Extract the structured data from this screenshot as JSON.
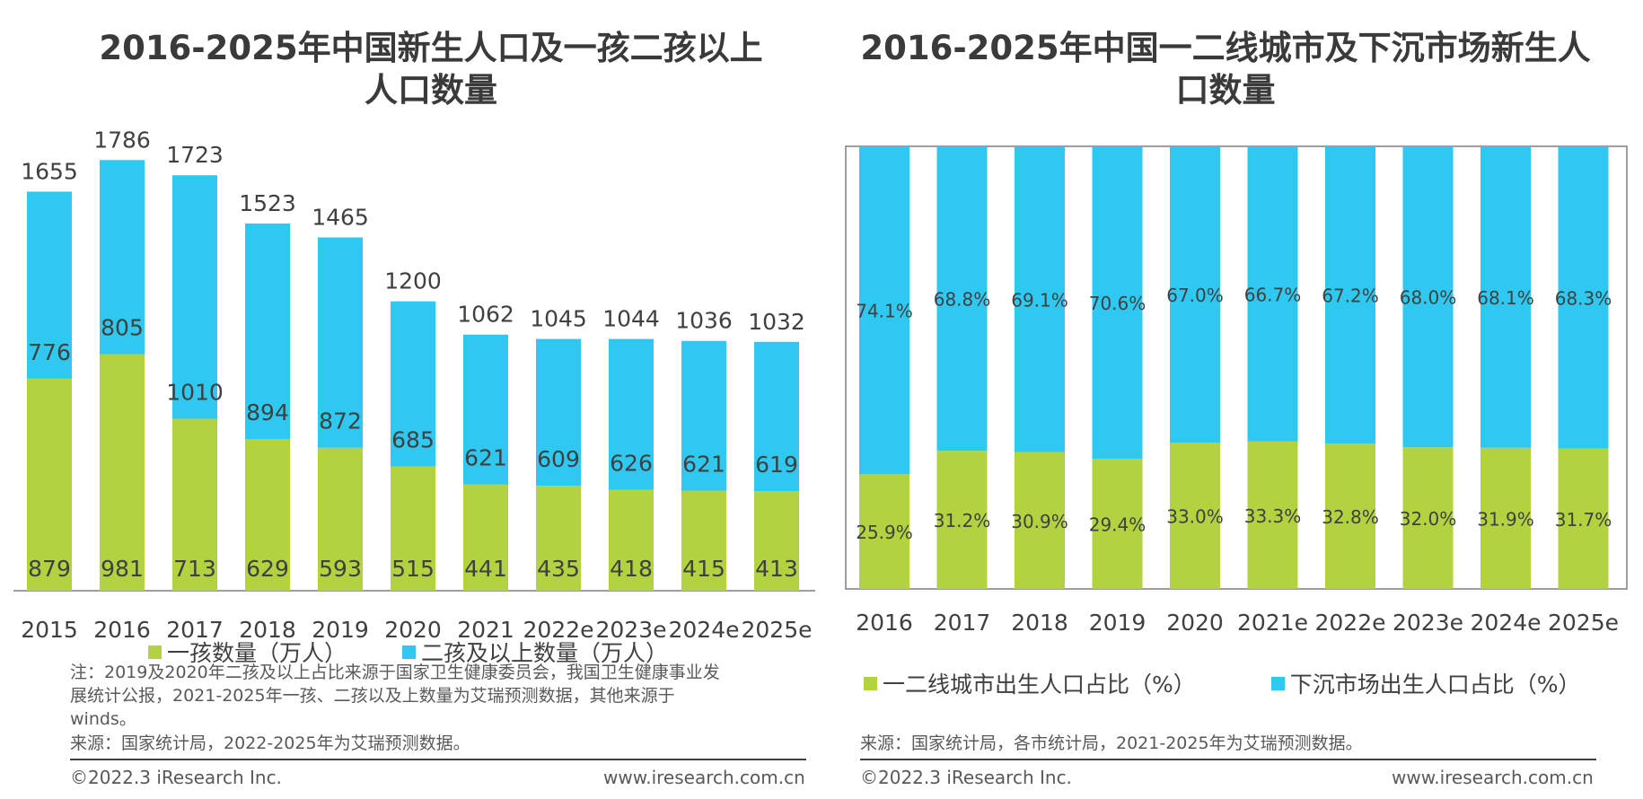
{
  "left": {
    "title_line1": "2016-2025年中国新生人口及一孩二孩以上",
    "title_line2": "人口数量",
    "legend": {
      "first": "一孩数量（万人）",
      "second": "二孩及以上数量（万人）"
    },
    "note": "注：2019及2020年二孩及以上占比来源于国家卫生健康委员会，我国卫生健康事业发展统计公报，2021-2025年一孩、二孩以及上数量为艾瑞预测数据，其他来源于winds。",
    "note_line1": "注：2019及2020年二孩及以上占比来源于国家卫生健康委员会，我国卫生健康事业发",
    "note_line2": "展统计公报，2021-2025年一孩、二孩以及上数量为艾瑞预测数据，其他来源于",
    "note_line3": "winds。",
    "source": "来源：国家统计局，2022-2025年为艾瑞预测数据。",
    "copyright": "©2022.3 iResearch Inc.",
    "url": "www.iresearch.com.cn"
  },
  "right": {
    "title_line1": "2016-2025年中国一二线城市及下沉市场新生人",
    "title_line2": "口数量",
    "legend": {
      "first": "一二线城市出生人口占比（%）",
      "second": "下沉市场出生人口占比（%）"
    },
    "source": "来源：国家统计局，各市统计局，2021-2025年为艾瑞预测数据。",
    "copyright": "©2022.3 iResearch Inc.",
    "url": "www.iresearch.com.cn"
  },
  "colors": {
    "green": "#b2d33f",
    "blue": "#2fc8f0",
    "axis": "#7f7f7f",
    "text": "#404040"
  },
  "chart_data": [
    {
      "type": "bar",
      "stacked": true,
      "title": "2016-2025年中国新生人口及一孩二孩以上人口数量",
      "categories": [
        "2015",
        "2016",
        "2017",
        "2018",
        "2019",
        "2020",
        "2021",
        "2022e",
        "2023e",
        "2024e",
        "2025e"
      ],
      "series": [
        {
          "name": "一孩数量（万人）",
          "values": [
            879,
            981,
            713,
            629,
            593,
            515,
            441,
            435,
            418,
            415,
            413
          ]
        },
        {
          "name": "二孩及以上数量（万人）",
          "values": [
            776,
            805,
            1010,
            894,
            872,
            685,
            621,
            609,
            626,
            621,
            619
          ]
        }
      ],
      "totals": [
        1655,
        1786,
        1723,
        1523,
        1465,
        1200,
        1062,
        1045,
        1044,
        1036,
        1032
      ],
      "ylim": [
        0,
        2050
      ],
      "legend_position": "bottom"
    },
    {
      "type": "bar",
      "stacked": true,
      "percent": true,
      "title": "2016-2025年中国一二线城市及下沉市场新生人口数量",
      "categories": [
        "2016",
        "2017",
        "2018",
        "2019",
        "2020",
        "2021e",
        "2022e",
        "2023e",
        "2024e",
        "2025e"
      ],
      "series": [
        {
          "name": "一二线城市出生人口占比（%）",
          "values": [
            25.9,
            31.2,
            30.9,
            29.4,
            33.0,
            33.3,
            32.8,
            32.0,
            31.9,
            31.7
          ]
        },
        {
          "name": "下沉市场出生人口占比（%）",
          "values": [
            74.1,
            68.8,
            69.1,
            70.6,
            67.0,
            66.7,
            67.2,
            68.0,
            68.1,
            68.3
          ]
        }
      ],
      "ylim": [
        0,
        100
      ],
      "legend_position": "bottom"
    }
  ]
}
